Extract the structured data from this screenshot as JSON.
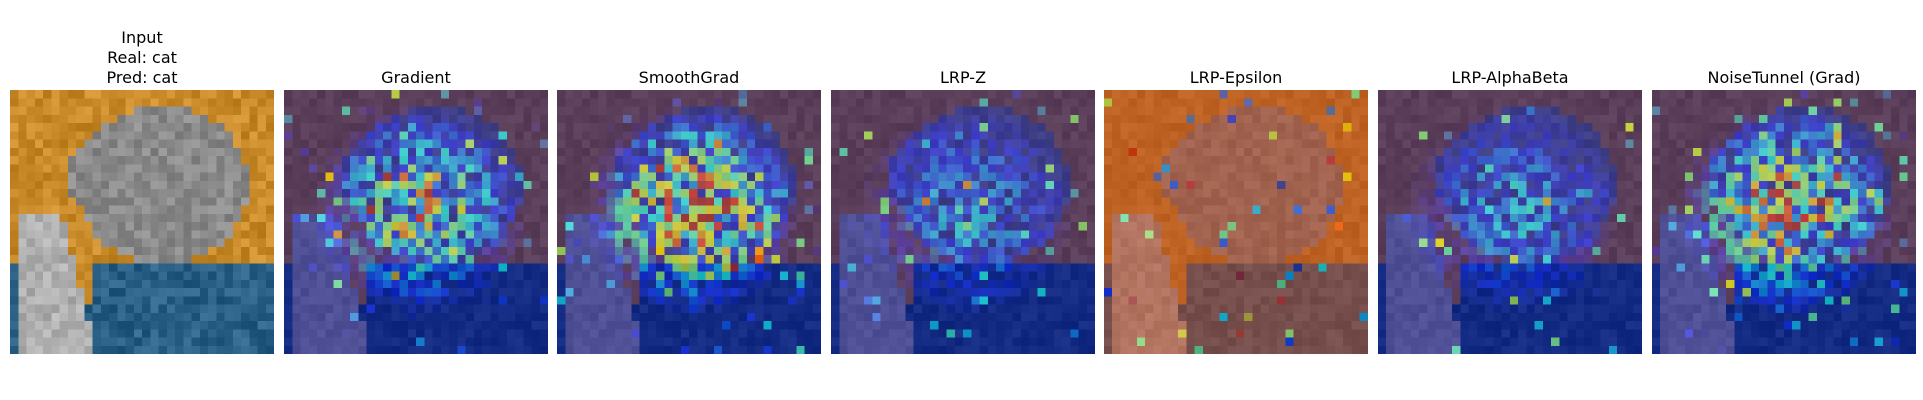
{
  "figure": {
    "panels": [
      {
        "id": "input",
        "title": "Input\nReal: cat\nPred: cat",
        "kind": "input"
      },
      {
        "id": "gradient",
        "title": "Gradient",
        "kind": "heat",
        "colormap": "jet",
        "overlay_alpha": 0.55
      },
      {
        "id": "smoothgrad",
        "title": "SmoothGrad",
        "kind": "heat",
        "colormap": "jet",
        "overlay_alpha": 0.55
      },
      {
        "id": "lrp-z",
        "title": "LRP-Z",
        "kind": "heat",
        "colormap": "jet",
        "overlay_alpha": 0.55
      },
      {
        "id": "lrp-epsilon",
        "title": "LRP-Epsilon",
        "kind": "heat-red",
        "colormap": "jet",
        "overlay_alpha": 0.55
      },
      {
        "id": "lrp-alphabeta",
        "title": "LRP-AlphaBeta",
        "kind": "heat",
        "colormap": "jet",
        "overlay_alpha": 0.55
      },
      {
        "id": "noisetunnel-grad",
        "title": "NoiseTunnel (Grad)",
        "kind": "heat",
        "colormap": "jet",
        "overlay_alpha": 0.55
      }
    ],
    "colors": {
      "background_orange": "#c98a2a",
      "blanket_blue": "#2a5f86",
      "cat_gray": "#8a8a8a",
      "heat_low": "#1f3bd6",
      "heat_high": "#d01a1a",
      "epsilon_tint": "#b4421e"
    }
  }
}
